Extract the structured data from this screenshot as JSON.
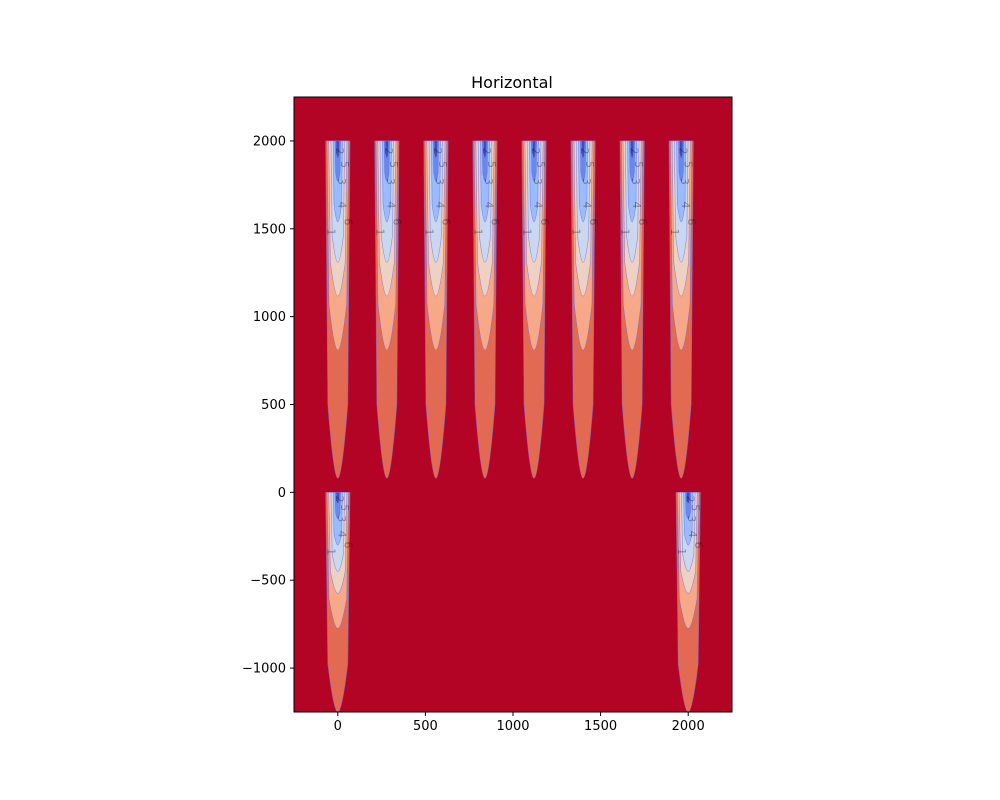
{
  "chart_data": {
    "type": "contour",
    "title": "Horizontal",
    "xlabel": "",
    "ylabel": "",
    "xlim": [
      -250,
      2250
    ],
    "ylim": [
      -1250,
      2250
    ],
    "x_ticks": [
      0,
      500,
      1000,
      1500,
      2000
    ],
    "y_ticks": [
      -1000,
      -500,
      0,
      500,
      1000,
      1500,
      2000
    ],
    "x_tick_labels": [
      "0",
      "500",
      "1000",
      "1500",
      "2000"
    ],
    "y_tick_labels": [
      "−1000",
      "−500",
      "0",
      "500",
      "1000",
      "1500",
      "2000"
    ],
    "colormap": "coolwarm",
    "background_color": "#b40426",
    "contour_levels": [
      1,
      2,
      3,
      4,
      5,
      6,
      7
    ],
    "level_colors": [
      "#3b4cc0",
      "#6788ee",
      "#9abbff",
      "#c9d7f0",
      "#edd1c2",
      "#f7a889",
      "#e26952"
    ],
    "probes": {
      "top_row": {
        "centers_x": [
          0,
          280,
          560,
          840,
          1120,
          1400,
          1680,
          1960
        ],
        "top_y": 2000,
        "bottom_y": 80,
        "half_width": 70
      },
      "bottom_row": {
        "centers_x": [
          0,
          2000
        ],
        "top_y": 0,
        "bottom_y": -1250,
        "half_width": 70
      }
    },
    "contour_labels": [
      "1",
      "2",
      "3",
      "4",
      "5",
      "6",
      "7"
    ]
  }
}
